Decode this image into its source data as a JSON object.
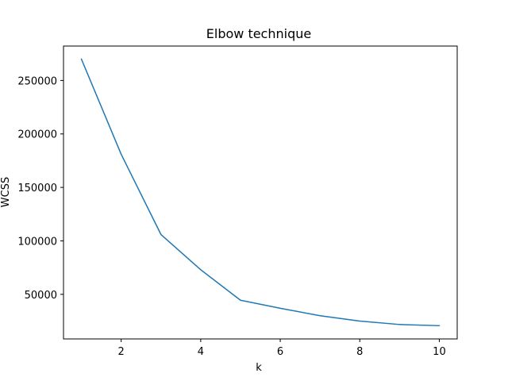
{
  "chart_data": {
    "type": "line",
    "title": "Elbow technique",
    "xlabel": "k",
    "ylabel": "WCSS",
    "x": [
      1,
      2,
      3,
      4,
      5,
      6,
      7,
      8,
      9,
      10
    ],
    "series": [
      {
        "values": [
          270000,
          181000,
          106000,
          73000,
          44500,
          37000,
          30000,
          25000,
          21800,
          20700
        ],
        "color": "#1f77b4"
      }
    ],
    "xlim": [
      0.55,
      10.45
    ],
    "ylim": [
      8300,
      282200
    ],
    "xticks": [
      2,
      4,
      6,
      8,
      10
    ],
    "yticks": [
      50000,
      100000,
      150000,
      200000,
      250000
    ],
    "grid": false,
    "legend": "none"
  }
}
